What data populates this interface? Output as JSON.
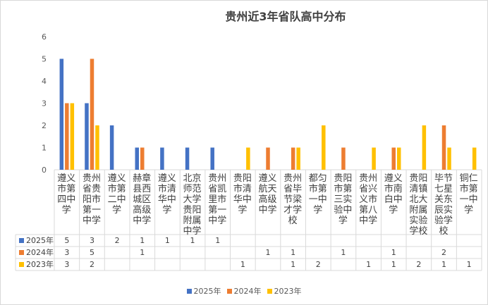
{
  "chart_data": {
    "type": "bar",
    "title": "贵州近3年省队高中分布",
    "xlabel": "",
    "ylabel": "",
    "ylim": [
      0,
      6
    ],
    "yticks": [
      "0",
      "1",
      "2",
      "3",
      "4",
      "5",
      "6"
    ],
    "grid": false,
    "legend_position": "bottom",
    "categories": [
      "遵义市第四中学",
      "贵州省贵阳市第一中学",
      "遵义市第二中学",
      "赫章县西城区高级中学",
      "遵义市清华中学",
      "北京师范大学贵阳附属中学",
      "贵州省凯里市第一中学",
      "贵阳市清华中学",
      "遵义航天高级中学",
      "贵州省毕节梁才学校",
      "都匀市第一中学",
      "贵阳市第三实验中学",
      "贵州省兴义市第八中学",
      "遵义市南白中学",
      "贵阳清镇北大附属实验学校",
      "毕节七星关东辰实验学校",
      "铜仁市第一中学"
    ],
    "series": [
      {
        "name": "2025年",
        "color": "#4472C4",
        "values": [
          5,
          3,
          2,
          1,
          1,
          1,
          1,
          null,
          null,
          null,
          null,
          null,
          null,
          null,
          null,
          null,
          null
        ]
      },
      {
        "name": "2024年",
        "color": "#ED7D31",
        "values": [
          3,
          5,
          null,
          1,
          null,
          null,
          null,
          null,
          1,
          1,
          null,
          1,
          null,
          1,
          null,
          2,
          null
        ]
      },
      {
        "name": "2023年",
        "color": "#FFC000",
        "values": [
          3,
          2,
          null,
          null,
          null,
          null,
          null,
          1,
          null,
          1,
          2,
          null,
          1,
          1,
          2,
          1,
          1
        ]
      }
    ]
  }
}
